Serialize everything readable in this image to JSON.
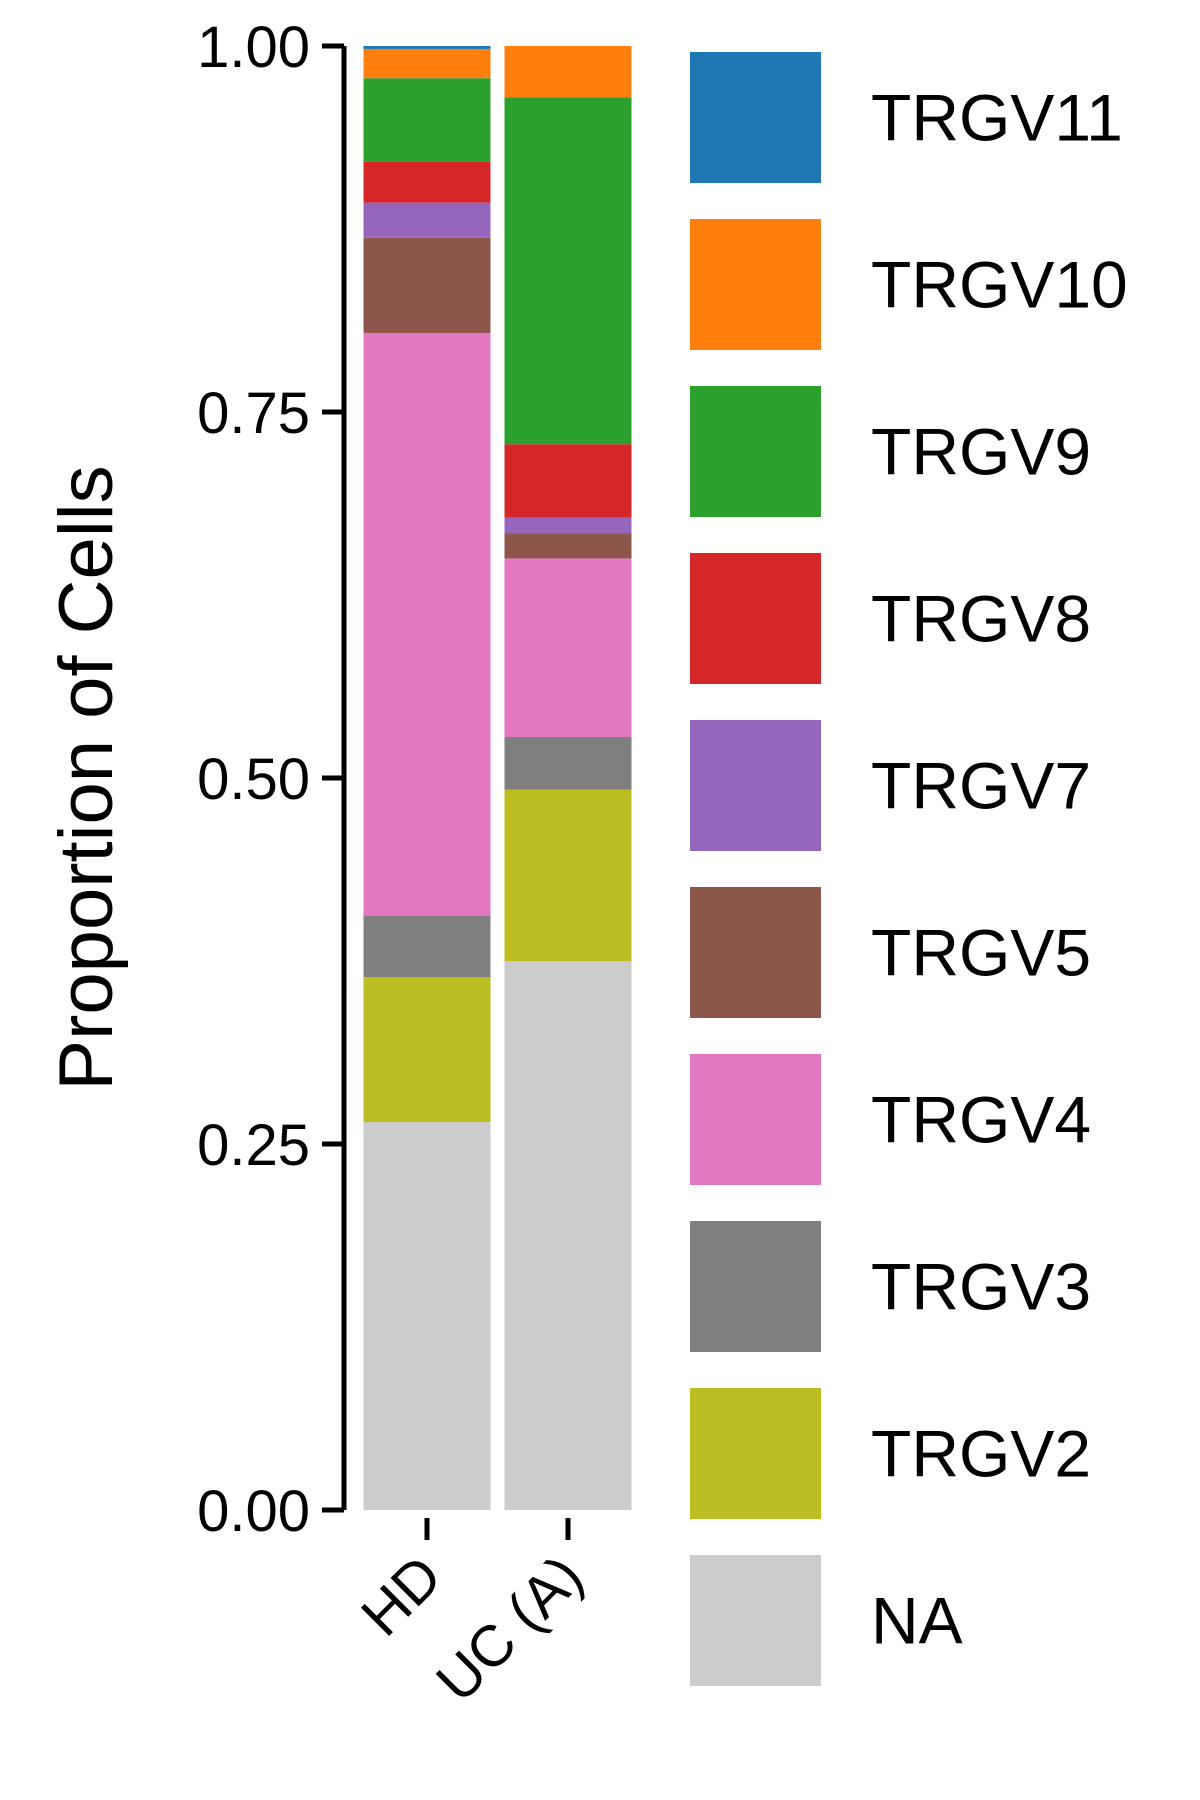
{
  "chart_data": {
    "type": "bar",
    "stacked": true,
    "ylabel": "Proportion of Cells",
    "xlabel": "",
    "ylim": [
      0,
      1
    ],
    "y_ticks": [
      "0.00",
      "0.25",
      "0.50",
      "0.75",
      "1.00"
    ],
    "categories": [
      "HD",
      "UC (A)"
    ],
    "series": [
      {
        "name": "NA",
        "color": "#cccccc",
        "values": [
          0.265,
          0.375
        ]
      },
      {
        "name": "TRGV2",
        "color": "#bcbd22",
        "values": [
          0.099,
          0.117
        ]
      },
      {
        "name": "TRGV3",
        "color": "#7f7f7f",
        "values": [
          0.042,
          0.036
        ]
      },
      {
        "name": "TRGV4",
        "color": "#e377c2",
        "values": [
          0.398,
          0.122
        ]
      },
      {
        "name": "TRGV5",
        "color": "#8c564b",
        "values": [
          0.065,
          0.017
        ]
      },
      {
        "name": "TRGV7",
        "color": "#9467bd",
        "values": [
          0.024,
          0.011
        ]
      },
      {
        "name": "TRGV8",
        "color": "#d62728",
        "values": [
          0.028,
          0.05
        ]
      },
      {
        "name": "TRGV9",
        "color": "#2ca02c",
        "values": [
          0.057,
          0.237
        ]
      },
      {
        "name": "TRGV10",
        "color": "#ff7f0e",
        "values": [
          0.02,
          0.035
        ]
      },
      {
        "name": "TRGV11",
        "color": "#1f77b4",
        "values": [
          0.002,
          0.0
        ]
      }
    ],
    "legend": {
      "position": "right",
      "order": [
        "TRGV11",
        "TRGV10",
        "TRGV9",
        "TRGV8",
        "TRGV7",
        "TRGV5",
        "TRGV4",
        "TRGV3",
        "TRGV2",
        "NA"
      ]
    },
    "grid": false
  }
}
